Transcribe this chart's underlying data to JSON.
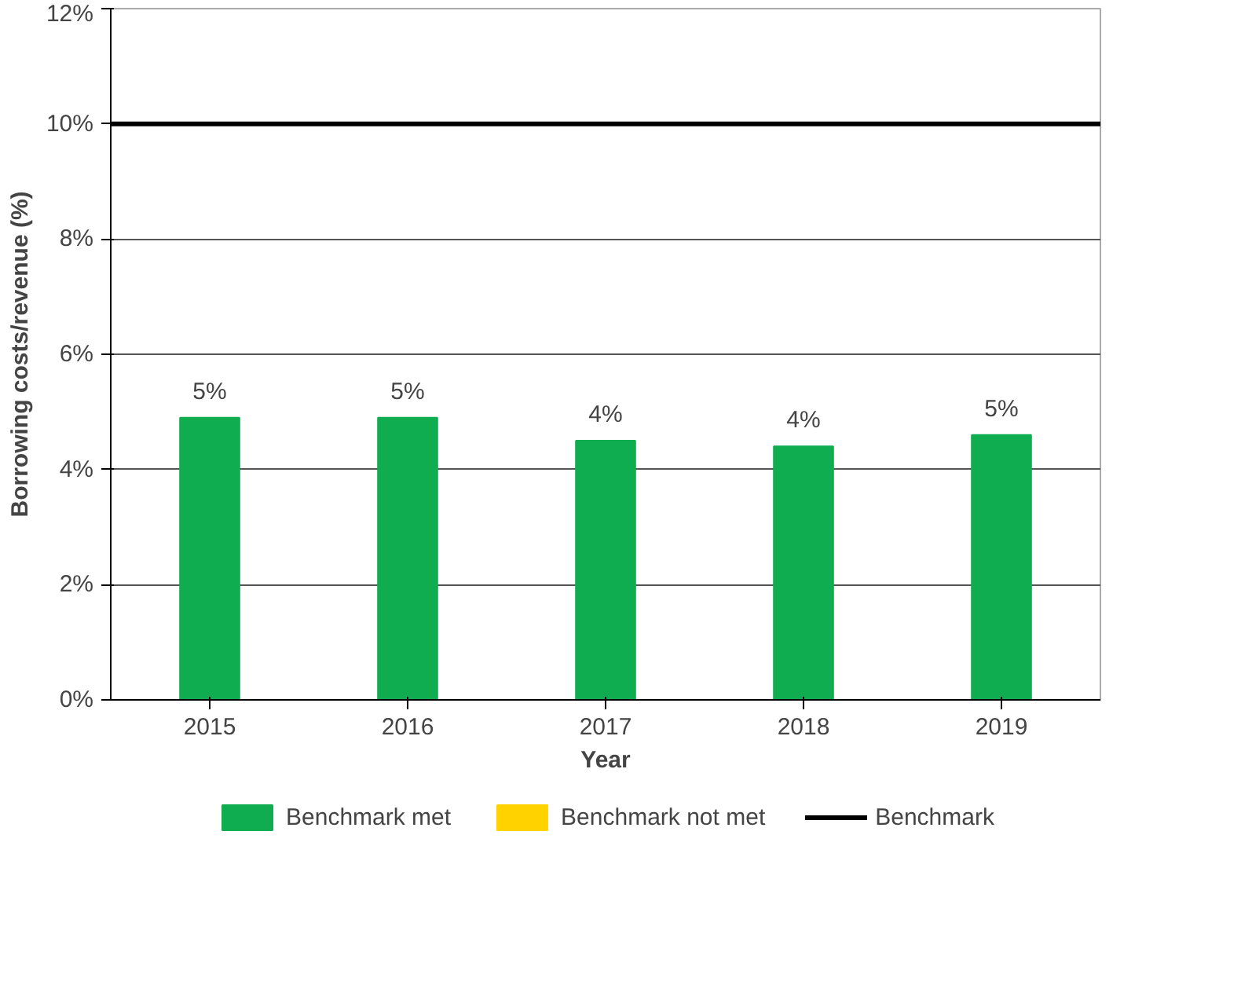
{
  "chart_data": {
    "type": "bar",
    "xlabel": "Year",
    "ylabel": "Borrowing costs/revenue (%)",
    "categories": [
      "2015",
      "2016",
      "2017",
      "2018",
      "2019"
    ],
    "series": [
      {
        "name": "Benchmark met",
        "color": "#0fad4f",
        "values": [
          4.9,
          4.9,
          4.5,
          4.4,
          4.6
        ],
        "value_labels": [
          "5%",
          "5%",
          "4%",
          "4%",
          "5%"
        ]
      },
      {
        "name": "Benchmark not met",
        "color": "#ffd200",
        "values": [
          null,
          null,
          null,
          null,
          null
        ]
      }
    ],
    "ref_lines": [
      {
        "axis": "y",
        "value": 10,
        "label": "Benchmark",
        "color": "#000000",
        "line_style": "solid"
      }
    ],
    "ylim": [
      0,
      12
    ],
    "yticks": [
      {
        "value": 0,
        "label": "0%"
      },
      {
        "value": 2,
        "label": "2%"
      },
      {
        "value": 4,
        "label": "4%"
      },
      {
        "value": 6,
        "label": "6%"
      },
      {
        "value": 8,
        "label": "8%"
      },
      {
        "value": 10,
        "label": "10%"
      },
      {
        "value": 12,
        "label": "12%"
      }
    ],
    "grid": "y",
    "legend": "bottom"
  }
}
